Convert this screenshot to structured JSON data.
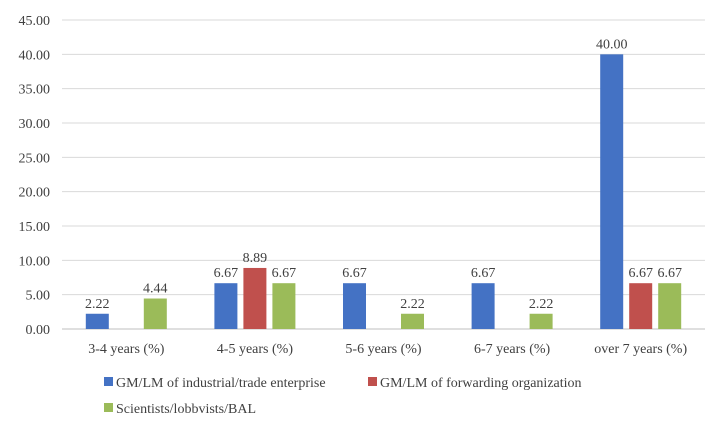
{
  "chart_data": {
    "type": "bar",
    "categories": [
      "3-4 years (%)",
      "4-5 years (%)",
      "5-6 years (%)",
      "6-7 years (%)",
      "over 7 years (%)"
    ],
    "series": [
      {
        "name": "GM/LM of industrial/trade enterprise",
        "color": "#4472c4",
        "values": [
          2.22,
          6.67,
          6.67,
          6.67,
          40.0
        ]
      },
      {
        "name": "GM/LM of forwarding organization",
        "color": "#c0504d",
        "values": [
          null,
          8.89,
          null,
          null,
          6.67
        ]
      },
      {
        "name": "Scientists/lobbvists/BAL",
        "color": "#9bbb59",
        "values": [
          4.44,
          6.67,
          2.22,
          2.22,
          6.67
        ]
      }
    ],
    "ylim": [
      0,
      45
    ],
    "yticks": [
      0,
      5,
      10,
      15,
      20,
      25,
      30,
      35,
      40,
      45
    ],
    "grid": true,
    "legend_position": "bottom",
    "title": "",
    "xlabel": "",
    "ylabel": ""
  }
}
